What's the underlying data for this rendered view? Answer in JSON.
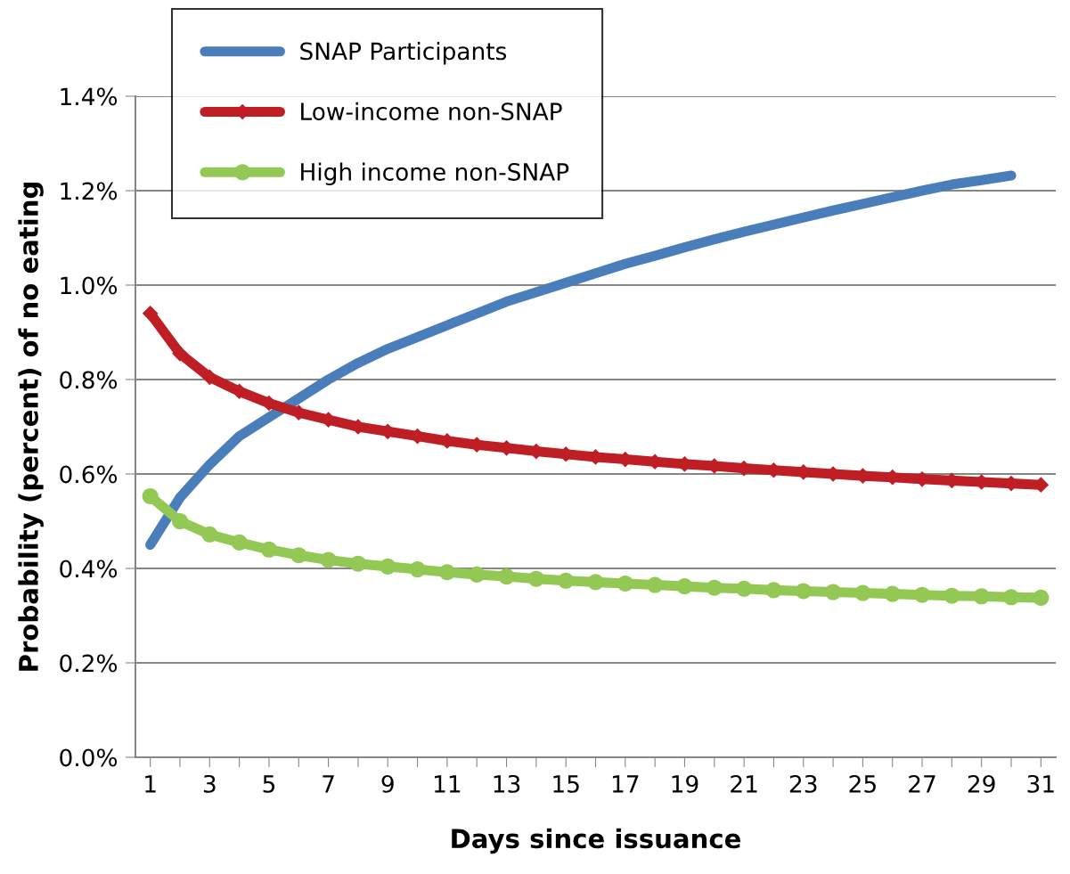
{
  "chart_data": {
    "type": "line",
    "xlabel": "Days since issuance",
    "ylabel": "Probability (percent) of no eating",
    "categories": [
      "1",
      null,
      "3",
      null,
      "5",
      null,
      "7",
      null,
      "9",
      null,
      "11",
      null,
      "13",
      null,
      "15",
      null,
      "17",
      null,
      "19",
      null,
      "21",
      null,
      "23",
      null,
      "25",
      null,
      "27",
      null,
      "29",
      null,
      "31"
    ],
    "ylim": [
      0,
      1.4
    ],
    "yticks": [
      {
        "value": 0,
        "label": "0.0%"
      },
      {
        "value": 0.2,
        "label": "0.2%"
      },
      {
        "value": 0.4,
        "label": "0.4%"
      },
      {
        "value": 0.6,
        "label": "0.6%"
      },
      {
        "value": 0.8,
        "label": "0.8%"
      },
      {
        "value": 1.0,
        "label": "1.0%"
      },
      {
        "value": 1.2,
        "label": "1.2%"
      },
      {
        "value": 1.4,
        "label": "1.4%"
      }
    ],
    "grid": "y",
    "legend": "top left",
    "series": [
      {
        "name": "SNAP Participants",
        "color": "#4a7ebb",
        "marker": "none",
        "values": [
          0.45,
          0.55,
          0.62,
          0.68,
          0.72,
          0.76,
          0.8,
          0.835,
          0.865,
          0.89,
          0.915,
          0.94,
          0.965,
          0.985,
          1.005,
          1.025,
          1.045,
          1.062,
          1.08,
          1.097,
          1.113,
          1.128,
          1.143,
          1.158,
          1.172,
          1.186,
          1.2,
          1.213,
          1.222,
          1.232,
          null
        ]
      },
      {
        "name": "Low-income non-SNAP",
        "color": "#be1e24",
        "marker": "diamond",
        "values": [
          0.94,
          0.855,
          0.805,
          0.775,
          0.75,
          0.73,
          0.715,
          0.7,
          0.69,
          0.68,
          0.67,
          0.662,
          0.655,
          0.648,
          0.642,
          0.636,
          0.631,
          0.626,
          0.621,
          0.617,
          0.612,
          0.608,
          0.604,
          0.6,
          0.596,
          0.593,
          0.589,
          0.586,
          0.583,
          0.58,
          0.577
        ]
      },
      {
        "name": "High income non-SNAP",
        "color": "#92c853",
        "marker": "circle",
        "values": [
          0.553,
          0.5,
          0.472,
          0.455,
          0.44,
          0.428,
          0.418,
          0.41,
          0.404,
          0.398,
          0.392,
          0.387,
          0.383,
          0.378,
          0.374,
          0.371,
          0.368,
          0.365,
          0.362,
          0.359,
          0.357,
          0.354,
          0.352,
          0.35,
          0.348,
          0.346,
          0.344,
          0.342,
          0.341,
          0.339,
          0.338
        ]
      }
    ]
  }
}
